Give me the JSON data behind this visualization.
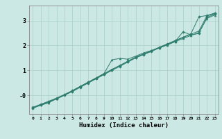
{
  "xlabel": "Humidex (Indice chaleur)",
  "ylabel": "",
  "background_color": "#cce8e4",
  "grid_color": "#aacfc8",
  "line_color": "#2e7d6e",
  "xlim": [
    -0.5,
    23.5
  ],
  "ylim": [
    -0.75,
    3.6
  ],
  "ytick_labels": [
    "-0",
    "1",
    "2",
    "3"
  ],
  "ytick_vals": [
    0,
    1,
    2,
    3
  ],
  "lines": [
    [
      0,
      -0.5,
      1,
      -0.38,
      2,
      -0.26,
      3,
      -0.13,
      4,
      0.02,
      5,
      0.18,
      6,
      0.35,
      7,
      0.52,
      8,
      0.68,
      9,
      0.85,
      10,
      1.02,
      11,
      1.18,
      12,
      1.35,
      13,
      1.52,
      14,
      1.65,
      15,
      1.78,
      16,
      1.92,
      17,
      2.05,
      18,
      2.18,
      19,
      2.32,
      20,
      2.45,
      21,
      2.58,
      22,
      3.18,
      23,
      3.28
    ],
    [
      0,
      -0.48,
      1,
      -0.36,
      2,
      -0.24,
      3,
      -0.11,
      4,
      0.03,
      5,
      0.19,
      6,
      0.36,
      7,
      0.53,
      8,
      0.7,
      9,
      0.87,
      10,
      1.04,
      11,
      1.2,
      12,
      1.37,
      13,
      1.53,
      14,
      1.66,
      15,
      1.79,
      16,
      1.93,
      17,
      2.06,
      18,
      2.2,
      19,
      2.33,
      20,
      2.47,
      21,
      3.15,
      22,
      3.2,
      23,
      3.3
    ],
    [
      0,
      -0.52,
      1,
      -0.4,
      2,
      -0.28,
      3,
      -0.15,
      4,
      0.0,
      5,
      0.15,
      6,
      0.32,
      7,
      0.49,
      8,
      0.66,
      9,
      0.83,
      10,
      1.0,
      11,
      1.16,
      12,
      1.33,
      13,
      1.5,
      14,
      1.63,
      15,
      1.76,
      16,
      1.9,
      17,
      2.03,
      18,
      2.16,
      19,
      2.55,
      20,
      2.42,
      21,
      2.48,
      22,
      3.12,
      23,
      3.26
    ],
    [
      0,
      -0.5,
      2,
      -0.3,
      3,
      -0.13,
      5,
      0.17,
      7,
      0.51,
      9,
      0.87,
      10,
      1.42,
      11,
      1.48,
      12,
      1.45,
      13,
      1.57,
      14,
      1.7,
      15,
      1.8,
      16,
      1.9,
      17,
      2.02,
      18,
      2.15,
      19,
      2.28,
      20,
      2.4,
      21,
      2.52,
      22,
      3.08,
      23,
      3.22
    ]
  ]
}
